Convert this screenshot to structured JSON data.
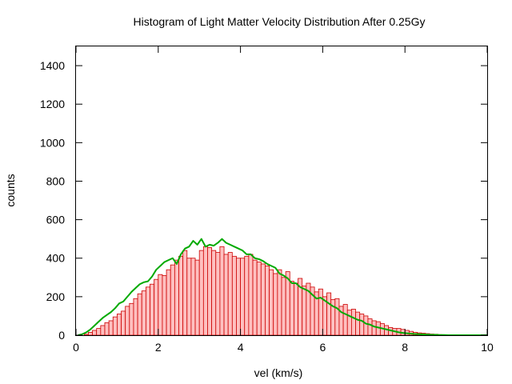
{
  "chart_data": {
    "type": "bar",
    "title": "Histogram of Light Matter Velocity Distribution After 0.25Gy",
    "xlabel": "vel (km/s)",
    "ylabel": "counts",
    "xlim": [
      0,
      10
    ],
    "ylim": [
      0,
      1500
    ],
    "xticks": [
      "0",
      "2",
      "4",
      "6",
      "8",
      "10"
    ],
    "yticks": [
      "0",
      "200",
      "400",
      "600",
      "800",
      "1000",
      "1200",
      "1400"
    ],
    "grid": false,
    "legend": "none",
    "colors": {
      "bar_fill": "#ffc0c0",
      "bar_edge": "#cc0000",
      "line": "#00aa00"
    },
    "bin_width": 0.1,
    "series": [
      {
        "type": "bar",
        "x": [
          0.05,
          0.15,
          0.25,
          0.35,
          0.45,
          0.55,
          0.65,
          0.75,
          0.85,
          0.95,
          1.05,
          1.15,
          1.25,
          1.35,
          1.45,
          1.55,
          1.65,
          1.75,
          1.85,
          1.95,
          2.05,
          2.15,
          2.25,
          2.35,
          2.45,
          2.55,
          2.65,
          2.75,
          2.85,
          2.95,
          3.05,
          3.15,
          3.25,
          3.35,
          3.45,
          3.55,
          3.65,
          3.75,
          3.85,
          3.95,
          4.05,
          4.15,
          4.25,
          4.35,
          4.45,
          4.55,
          4.65,
          4.75,
          4.85,
          4.95,
          5.05,
          5.15,
          5.25,
          5.35,
          5.45,
          5.55,
          5.65,
          5.75,
          5.85,
          5.95,
          6.05,
          6.15,
          6.25,
          6.35,
          6.45,
          6.55,
          6.65,
          6.75,
          6.85,
          6.95,
          7.05,
          7.15,
          7.25,
          7.35,
          7.45,
          7.55,
          7.65,
          7.75,
          7.85,
          7.95,
          8.05,
          8.15,
          8.25,
          8.35,
          8.45,
          8.55,
          8.65,
          8.75,
          8.85,
          8.95,
          9.05
        ],
        "values": [
          0,
          0,
          5,
          15,
          25,
          35,
          50,
          65,
          75,
          95,
          110,
          125,
          150,
          165,
          190,
          215,
          230,
          250,
          265,
          290,
          315,
          310,
          340,
          365,
          390,
          410,
          440,
          400,
          400,
          390,
          440,
          460,
          455,
          440,
          430,
          460,
          420,
          430,
          410,
          400,
          400,
          410,
          420,
          390,
          380,
          370,
          360,
          340,
          320,
          340,
          300,
          330,
          280,
          270,
          295,
          255,
          270,
          250,
          225,
          240,
          200,
          220,
          185,
          190,
          150,
          160,
          130,
          135,
          120,
          110,
          100,
          85,
          75,
          70,
          60,
          50,
          40,
          35,
          35,
          30,
          25,
          20,
          15,
          12,
          10,
          8,
          6,
          5,
          3,
          2,
          1
        ]
      },
      {
        "type": "line",
        "x": [
          0.05,
          0.15,
          0.25,
          0.35,
          0.45,
          0.55,
          0.65,
          0.75,
          0.85,
          0.95,
          1.05,
          1.15,
          1.25,
          1.35,
          1.45,
          1.55,
          1.65,
          1.75,
          1.85,
          1.95,
          2.05,
          2.15,
          2.25,
          2.35,
          2.45,
          2.55,
          2.65,
          2.75,
          2.85,
          2.95,
          3.05,
          3.15,
          3.25,
          3.35,
          3.45,
          3.55,
          3.65,
          3.75,
          3.85,
          3.95,
          4.05,
          4.15,
          4.25,
          4.35,
          4.45,
          4.55,
          4.65,
          4.75,
          4.85,
          4.95,
          5.05,
          5.15,
          5.25,
          5.35,
          5.45,
          5.55,
          5.65,
          5.75,
          5.85,
          5.95,
          6.05,
          6.15,
          6.25,
          6.35,
          6.45,
          6.55,
          6.65,
          6.75,
          6.85,
          6.95,
          7.05,
          7.15,
          7.25,
          7.35,
          7.45,
          7.55,
          7.65,
          7.75,
          7.85,
          7.95,
          8.05,
          8.15,
          8.25,
          8.35,
          8.45,
          8.55,
          8.65,
          8.75,
          8.85,
          8.95,
          9.05,
          9.25,
          9.5,
          10.0
        ],
        "values": [
          0,
          5,
          15,
          30,
          50,
          70,
          90,
          105,
          120,
          140,
          165,
          175,
          200,
          225,
          245,
          265,
          275,
          280,
          305,
          340,
          360,
          380,
          390,
          400,
          370,
          420,
          450,
          460,
          490,
          470,
          500,
          460,
          470,
          465,
          480,
          500,
          480,
          470,
          460,
          450,
          440,
          420,
          420,
          400,
          395,
          385,
          370,
          360,
          350,
          320,
          310,
          295,
          270,
          270,
          250,
          240,
          230,
          210,
          190,
          195,
          180,
          165,
          150,
          140,
          120,
          110,
          100,
          90,
          80,
          75,
          60,
          55,
          45,
          40,
          35,
          30,
          25,
          20,
          15,
          12,
          10,
          8,
          6,
          5,
          4,
          3,
          2,
          2,
          1,
          1,
          0,
          0,
          0,
          0
        ]
      }
    ]
  }
}
